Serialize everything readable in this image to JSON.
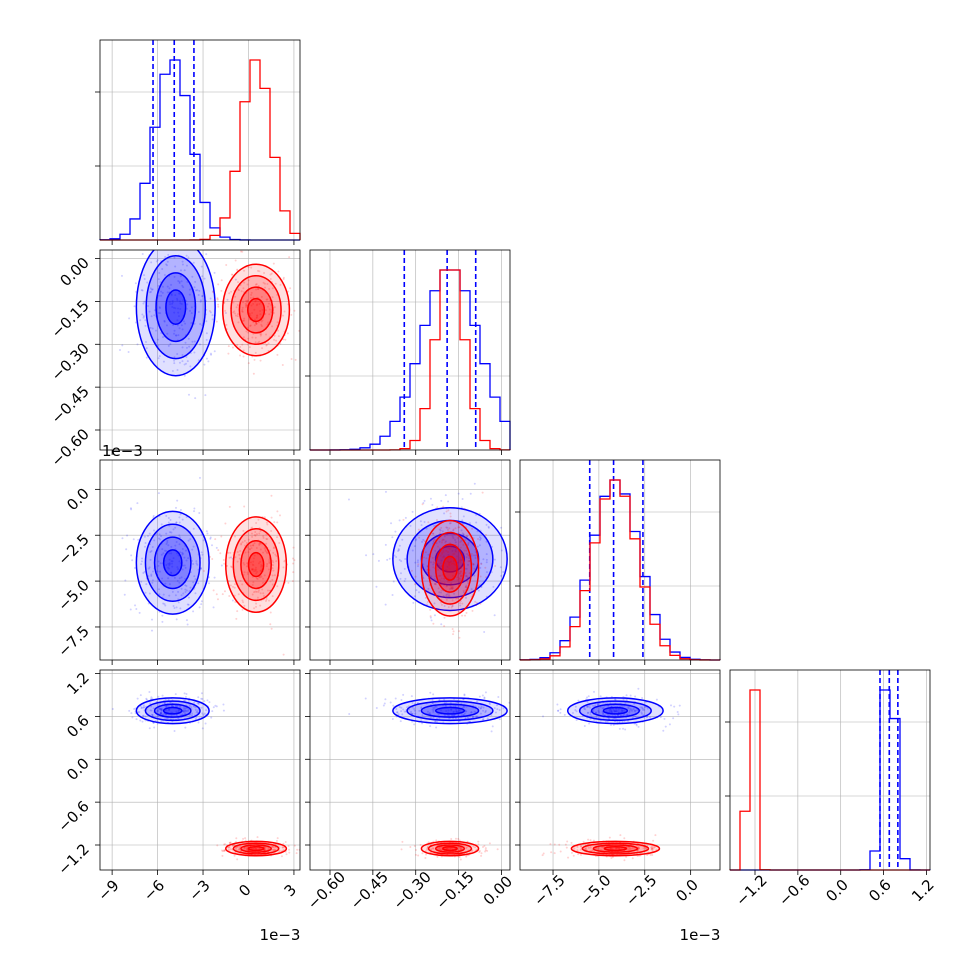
{
  "colors": {
    "series_a": "#ff0000",
    "series_b": "#0000ff",
    "grid": "#b0b0b0",
    "frame": "#7f7f7f"
  },
  "chart_data": {
    "type": "corner",
    "parameters": [
      {
        "ticks": [
          -9,
          -6,
          -3,
          0,
          3
        ],
        "tick_labels": [
          "−9",
          "−6",
          "−3",
          "0",
          "3"
        ],
        "range": [
          -9.8,
          3.4
        ],
        "scale_label": "1e−3"
      },
      {
        "ticks": [
          -0.6,
          -0.45,
          -0.3,
          -0.15,
          0.0
        ],
        "tick_labels": [
          "−0.60",
          "−0.45",
          "−0.30",
          "−0.15",
          "0.00"
        ],
        "range": [
          -0.67,
          0.03
        ],
        "scale_label": ""
      },
      {
        "ticks": [
          -7.5,
          -5.0,
          -2.5,
          0.0
        ],
        "tick_labels": [
          "−7.5",
          "−5.0",
          "−2.5",
          "0.0"
        ],
        "range": [
          -9.3,
          1.6
        ],
        "scale_label": "1e−3"
      },
      {
        "ticks": [
          -1.2,
          -0.6,
          0.0,
          0.6,
          1.2
        ],
        "tick_labels": [
          "−1.2",
          "−0.6",
          "0.0",
          "0.6",
          "1.2"
        ],
        "range": [
          -1.55,
          1.25
        ],
        "scale_label": ""
      }
    ],
    "series": [
      {
        "color": "#0000ff",
        "means": [
          -5.0,
          -0.18,
          -4.1,
          0.68
        ],
        "sds": [
          1.2,
          0.1,
          1.3,
          0.09
        ],
        "quantiles": [
          [
            -6.3,
            -4.9,
            -3.6
          ],
          [
            -0.34,
            -0.19,
            -0.09
          ],
          [
            -5.5,
            -4.2,
            -2.6
          ],
          [
            0.55,
            0.68,
            0.8
          ]
        ]
      },
      {
        "color": "#ff0000",
        "means": [
          0.5,
          -0.18,
          -4.1,
          -1.25
        ],
        "sds": [
          1.0,
          0.05,
          1.2,
          0.05
        ],
        "quantiles": []
      }
    ],
    "scatter_panels": [
      {
        "x_param": 0,
        "y_param": 1,
        "blue": {
          "cx": -4.8,
          "cy": -0.17,
          "sx": 1.3,
          "sy": 0.12
        },
        "red": {
          "cx": 0.5,
          "cy": -0.18,
          "sx": 1.1,
          "sy": 0.08
        }
      },
      {
        "x_param": 0,
        "y_param": 2,
        "blue": {
          "cx": -5.0,
          "cy": -4.0,
          "sx": 1.2,
          "sy": 1.4
        },
        "red": {
          "cx": 0.5,
          "cy": -4.1,
          "sx": 1.0,
          "sy": 1.3
        }
      },
      {
        "x_param": 1,
        "y_param": 2,
        "blue": {
          "cx": -0.18,
          "cy": -3.8,
          "sx": 0.1,
          "sy": 1.4
        },
        "red": {
          "cx": -0.18,
          "cy": -4.3,
          "sx": 0.05,
          "sy": 1.3
        }
      },
      {
        "x_param": 0,
        "y_param": 3,
        "blue": {
          "cx": -5.0,
          "cy": 0.68,
          "sx": 1.2,
          "sy": 0.09
        },
        "red": {
          "cx": 0.5,
          "cy": -1.25,
          "sx": 1.0,
          "sy": 0.05
        }
      },
      {
        "x_param": 1,
        "y_param": 3,
        "blue": {
          "cx": -0.18,
          "cy": 0.68,
          "sx": 0.1,
          "sy": 0.09
        },
        "red": {
          "cx": -0.18,
          "cy": -1.25,
          "sx": 0.05,
          "sy": 0.05
        }
      },
      {
        "x_param": 2,
        "y_param": 3,
        "blue": {
          "cx": -4.1,
          "cy": 0.68,
          "sx": 1.3,
          "sy": 0.09
        },
        "red": {
          "cx": -4.1,
          "cy": -1.25,
          "sx": 1.2,
          "sy": 0.05
        }
      }
    ],
    "contour_levels_sigma": [
      0.5,
      1.0,
      1.5,
      2.0
    ],
    "grid": true
  }
}
